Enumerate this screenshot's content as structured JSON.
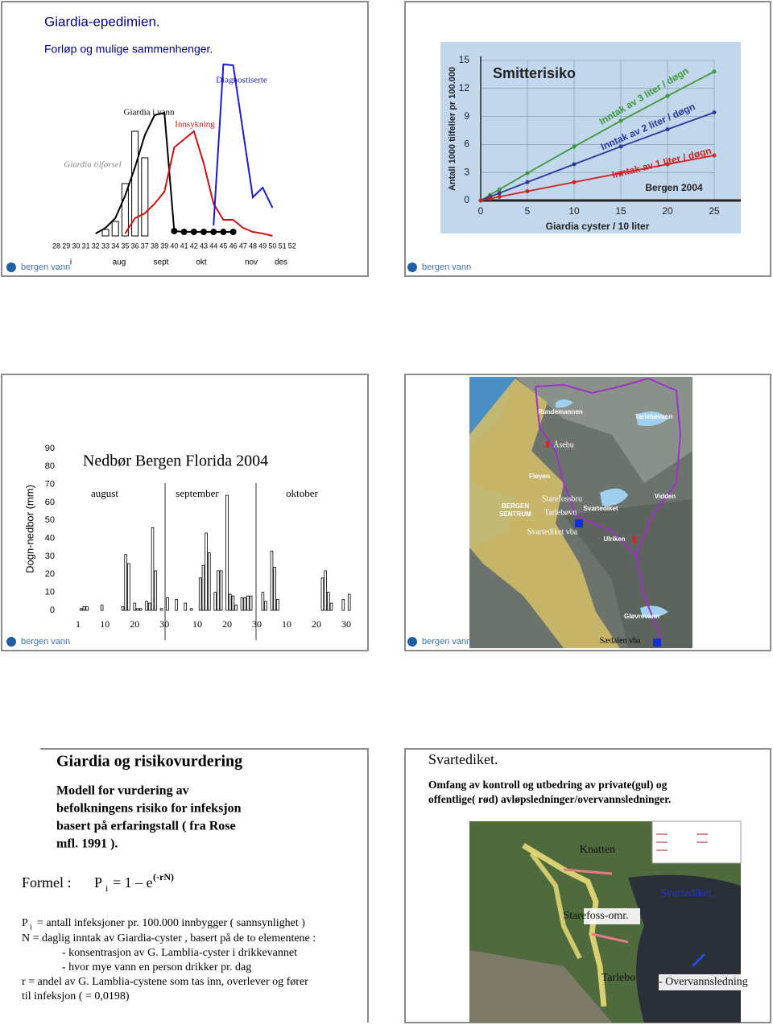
{
  "logo": "bergen vann",
  "chart_data": [
    {
      "type": "combo",
      "title": "Giardia-epedimien.",
      "subtitle": "Forløp og mulige sammenhenger.",
      "x": [
        28,
        29,
        30,
        31,
        32,
        33,
        34,
        35,
        36,
        37,
        38,
        39,
        40,
        41,
        42,
        43,
        44,
        45,
        46,
        47,
        48,
        49,
        50,
        51,
        52
      ],
      "months": [
        "i",
        "aug",
        "sept",
        "okt",
        "nov",
        "des"
      ],
      "ylim": [
        0,
        220
      ],
      "series": [
        {
          "name": "Giardia tilførsel",
          "kind": "bar",
          "color": "#888888",
          "values": [
            null,
            null,
            null,
            null,
            null,
            8,
            18,
            65,
            130,
            97,
            null,
            null,
            null,
            null,
            null,
            null,
            null,
            null,
            null,
            null,
            null,
            null,
            null,
            null,
            null
          ]
        },
        {
          "name": "Giardia i vann",
          "kind": "line",
          "color": "#000000",
          "markers": true,
          "values": [
            null,
            null,
            null,
            null,
            3,
            10,
            22,
            50,
            85,
            125,
            150,
            153,
            6,
            5,
            5,
            5,
            5,
            5,
            5,
            null,
            null,
            null,
            null,
            null,
            null
          ]
        },
        {
          "name": "Innsykning",
          "kind": "line",
          "color": "#cc1111",
          "values": [
            null,
            null,
            null,
            null,
            null,
            null,
            null,
            3,
            22,
            28,
            40,
            55,
            110,
            120,
            130,
            90,
            40,
            20,
            20,
            10,
            5,
            3,
            0,
            null,
            null
          ]
        },
        {
          "name": "Diagnostiserte",
          "kind": "line",
          "color": "#1a1acc",
          "values": [
            null,
            null,
            null,
            null,
            null,
            null,
            null,
            null,
            null,
            null,
            null,
            null,
            null,
            null,
            null,
            null,
            13,
            213,
            212,
            130,
            48,
            60,
            35,
            null,
            null
          ]
        }
      ]
    },
    {
      "type": "line",
      "title": "Smitterisiko",
      "ylabel": "Antall 1000 tilfeller pr 100.000",
      "xlabel": "Giardia cyster / 10 liter",
      "annotation": "Bergen 2004",
      "x": [
        0,
        1,
        2,
        5,
        10,
        15,
        20,
        25
      ],
      "xlim": [
        0,
        25
      ],
      "ylim": [
        0,
        15
      ],
      "xticks": [
        0,
        5,
        10,
        15,
        20,
        25
      ],
      "yticks": [
        0,
        3,
        6,
        9,
        12,
        15
      ],
      "grid": true,
      "series": [
        {
          "name": "Inntak av 3 liter / døgn",
          "color": "#3c9a3c",
          "values": [
            0,
            0.59,
            1.18,
            2.93,
            5.76,
            8.53,
            11.19,
            13.8
          ]
        },
        {
          "name": "Inntak av 2 liter / døgn",
          "color": "#2a3a9a",
          "values": [
            0,
            0.4,
            0.79,
            1.96,
            3.88,
            5.77,
            7.62,
            9.43
          ]
        },
        {
          "name": "Inntak av 1 liter / døgn",
          "color": "#cc2222",
          "values": [
            0,
            0.2,
            0.4,
            0.99,
            1.96,
            2.93,
            3.88,
            4.83
          ]
        }
      ]
    },
    {
      "type": "bar",
      "title": "Nedbør Bergen Florida 2004",
      "ylabel": "Dogn-nedbor (mm)",
      "months": [
        "august",
        "september",
        "oktober"
      ],
      "ylim": [
        0,
        90
      ],
      "yticks": [
        0,
        10,
        20,
        30,
        40,
        50,
        60,
        70,
        80,
        90
      ],
      "color": "#ffffff",
      "categories": [
        "1",
        null,
        null,
        null,
        null,
        null,
        null,
        null,
        null,
        "10",
        null,
        null,
        null,
        null,
        null,
        null,
        null,
        null,
        null,
        "20",
        null,
        null,
        null,
        null,
        null,
        null,
        null,
        null,
        null,
        "30",
        null,
        null,
        null,
        null,
        null,
        null,
        null,
        null,
        null,
        null,
        "10",
        null,
        null,
        null,
        null,
        null,
        null,
        null,
        null,
        null,
        "20",
        null,
        null,
        null,
        null,
        null,
        null,
        null,
        null,
        null,
        "30",
        null,
        null,
        null,
        null,
        null,
        null,
        null,
        null,
        null,
        "10",
        null,
        null,
        null,
        null,
        null,
        null,
        null,
        null,
        null,
        "20",
        null,
        null,
        null,
        null,
        null,
        null,
        null,
        null,
        null,
        "30",
        null
      ],
      "values": [
        0,
        1,
        2,
        2,
        0,
        0,
        0,
        0,
        3,
        0,
        0,
        0,
        0,
        0,
        0,
        2,
        31,
        26,
        0,
        4,
        1,
        1,
        0,
        5,
        4,
        46,
        22,
        0,
        1,
        0,
        7,
        0,
        0,
        6,
        0,
        0,
        4,
        0,
        1,
        0,
        0,
        18,
        25,
        43,
        32,
        0,
        10,
        22,
        22,
        0,
        64,
        9,
        8,
        3,
        0,
        7,
        7,
        8,
        8,
        0,
        0,
        0,
        10,
        5,
        0,
        33,
        24,
        6,
        0,
        0,
        0,
        0,
        0,
        0,
        0,
        0,
        0,
        0,
        0,
        0,
        0,
        0,
        18,
        22,
        10,
        4,
        0,
        0,
        0,
        6,
        0,
        9
      ]
    }
  ],
  "map": {
    "labels": [
      "Rundemannen",
      "Tarlebøvann",
      "Åsebu",
      "Fløyen",
      "Starefossbru",
      "Tarlebøvn",
      "BERGEN",
      "SENTRUM",
      "Svartediket",
      "Svartediket vba",
      "Ulriken",
      "Vidden",
      "Gløvrevann",
      "Sædalen vba"
    ]
  },
  "risk": {
    "title": "Giardia og risikovurdering",
    "intro": [
      "Modell for vurdering av",
      "befolkningens risiko for infeksjon",
      "basert på erfaringstall ( fra Rose",
      "mfl. 1991 )."
    ],
    "formula": {
      "label": "Formel :",
      "symbol": "P",
      "subscript": "i",
      "rhs": "= 1 – e",
      "exponent": "(-rN)"
    },
    "p_definition": {
      "symbol": "P",
      "subscript": "i",
      "text": "= antall infeksjoner pr. 100.000 innbygger ( sannsynlighet )"
    },
    "definitions": [
      "N = daglig inntak av Giardia-cyster , basert på de to elementene :",
      "- konsentrasjon av G. Lamblia-cyster i drikkevannet",
      "- hvor mye vann en person drikker pr. dag",
      "r = andel av G. Lamblia-cystene som tas inn, overlever og fører",
      "til infeksjon ( = 0,0198)"
    ]
  },
  "svartediket": {
    "title": "Svartediket.",
    "description": [
      "Omfang av kontroll og utbedring av private(gul) og",
      "offentlige( rød) avløpsledninger/overvannsledninger."
    ],
    "labels": [
      "Knatten",
      "Svartediket",
      "Starefoss-omr.",
      "Tarlebo",
      "- Overvannsledning"
    ]
  }
}
